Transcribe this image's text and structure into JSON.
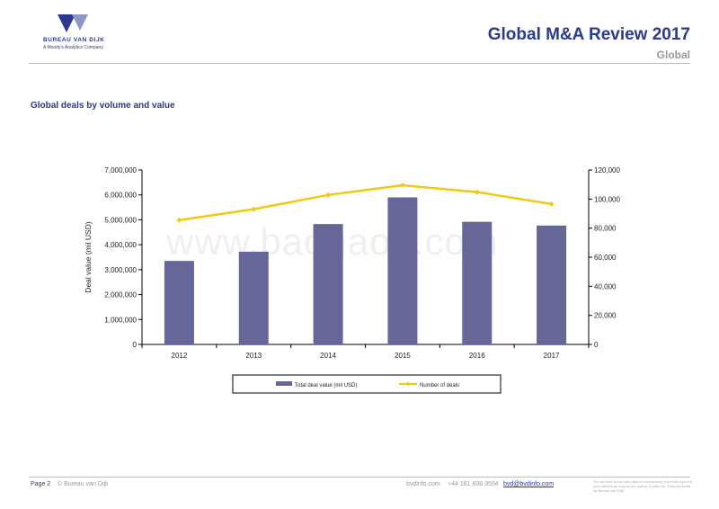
{
  "header": {
    "brand": "BUREAU VAN DIJK",
    "brand_sub": "A Moody's Analytics Company",
    "title": "Global M&A Review 2017",
    "subtitle": "Global"
  },
  "section_title": "Global deals by volume and value",
  "colors": {
    "bar": "#666699",
    "line": "#f2c811",
    "brand": "#2b3a8c"
  },
  "chart_data": {
    "type": "bar",
    "categories": [
      "2012",
      "2013",
      "2014",
      "2015",
      "2016",
      "2017"
    ],
    "series": [
      {
        "name": "Total deal value (mil USD)",
        "type": "bar",
        "axis": "left",
        "values": [
          3350000,
          3720000,
          4830000,
          5900000,
          4920000,
          4770000
        ]
      },
      {
        "name": "Number of deals",
        "type": "line",
        "axis": "right",
        "values": [
          85500,
          93000,
          102800,
          109500,
          104800,
          96600
        ]
      }
    ],
    "ylabel": "Deal value (mil USD)",
    "ylim": [
      0,
      7000000
    ],
    "y_ticks": [
      "0",
      "1,000,000",
      "2,000,000",
      "3,000,000",
      "4,000,000",
      "5,000,000",
      "6,000,000",
      "7,000,000"
    ],
    "y2lim": [
      0,
      120000
    ],
    "y2_ticks": [
      "0",
      "20,000",
      "40,000",
      "60,000",
      "80,000",
      "100,000",
      "120,000"
    ],
    "legend_position": "bottom"
  },
  "watermark": "www.baogao8.com",
  "footer": {
    "page": "Page 2",
    "copyright": "© Bureau van Dijk",
    "site": "bvdinfo.com",
    "phone": "+44 161 838 9554",
    "email": "bvd@bvdinfo.com",
    "note": "You are free to use any data or commentary from this report in your articles as long as the source is cited as: \"Data provided by Bureau van Dijk\""
  }
}
